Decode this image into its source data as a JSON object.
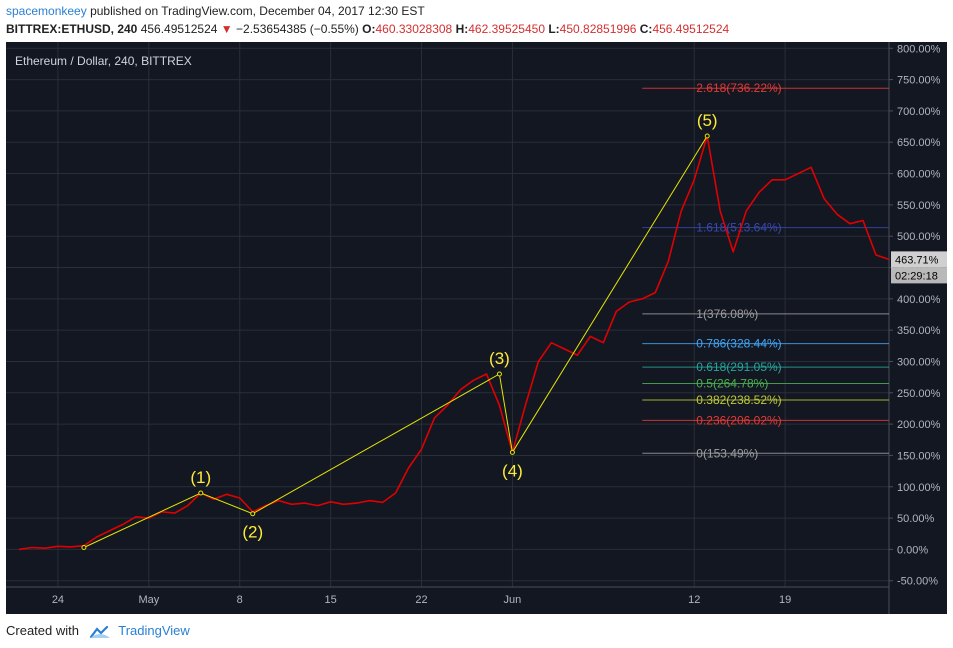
{
  "header": {
    "user": "spacemonkeey",
    "published_text": "published on TradingView.com, December 04, 2017 12:30 EST",
    "symbol": "BITTREX:ETHUSD, 240",
    "price": "456.49512524",
    "change_arrow": "▼",
    "change": "−2.53654385 (−0.55%)",
    "o_label": "O:",
    "o_value": "460.33028308",
    "h_label": "H:",
    "h_value": "462.39525450",
    "l_label": "L:",
    "l_value": "450.82851996",
    "c_label": "C:",
    "c_value": "456.49512524"
  },
  "footer": {
    "created_with": "Created with",
    "brand": "TradingView"
  },
  "colors": {
    "background": "#131722",
    "series": "#e00000",
    "wave": "#e6e600",
    "grid": "#2a2e39",
    "text": "#b2b5be"
  },
  "chart_data": {
    "type": "line",
    "title": "Ethereum / Dollar, 240, BITTREX",
    "ylabel": "",
    "y_unit": "%",
    "ylim": [
      -60,
      810
    ],
    "yticks": [
      -50,
      0,
      50,
      100,
      150,
      200,
      250,
      300,
      350,
      400,
      450,
      500,
      550,
      600,
      650,
      700,
      750,
      800
    ],
    "ytick_labels": [
      "-50.00%",
      "0.00%",
      "50.00%",
      "100.00%",
      "150.00%",
      "200.00%",
      "250.00%",
      "300.00%",
      "350.00%",
      "400.00%",
      "450.00%",
      "500.00%",
      "550.00%",
      "600.00%",
      "650.00%",
      "700.00%",
      "750.00%",
      "800.00%"
    ],
    "xlim": [
      "2017-04-20",
      "2017-06-27"
    ],
    "xticks": [
      {
        "date": "2017-04-24",
        "label": "24"
      },
      {
        "date": "2017-05-01",
        "label": "May"
      },
      {
        "date": "2017-05-08",
        "label": "8"
      },
      {
        "date": "2017-05-15",
        "label": "15"
      },
      {
        "date": "2017-05-22",
        "label": "22"
      },
      {
        "date": "2017-05-29",
        "label": "Jun"
      },
      {
        "date": "2017-06-12",
        "label": "12"
      },
      {
        "date": "2017-06-19",
        "label": "19"
      }
    ],
    "series": [
      {
        "color": "#e00000",
        "points": [
          [
            "2017-04-21",
            0
          ],
          [
            "2017-04-22",
            3
          ],
          [
            "2017-04-23",
            2
          ],
          [
            "2017-04-24",
            5
          ],
          [
            "2017-04-25",
            4
          ],
          [
            "2017-04-26",
            6
          ],
          [
            "2017-04-27",
            20
          ],
          [
            "2017-04-28",
            30
          ],
          [
            "2017-04-29",
            40
          ],
          [
            "2017-04-30",
            52
          ],
          [
            "2017-05-01",
            50
          ],
          [
            "2017-05-02",
            60
          ],
          [
            "2017-05-03",
            58
          ],
          [
            "2017-05-04",
            70
          ],
          [
            "2017-05-05",
            90
          ],
          [
            "2017-05-06",
            80
          ],
          [
            "2017-05-07",
            88
          ],
          [
            "2017-05-08",
            82
          ],
          [
            "2017-05-09",
            60
          ],
          [
            "2017-05-10",
            70
          ],
          [
            "2017-05-11",
            78
          ],
          [
            "2017-05-12",
            72
          ],
          [
            "2017-05-13",
            74
          ],
          [
            "2017-05-14",
            70
          ],
          [
            "2017-05-15",
            76
          ],
          [
            "2017-05-16",
            72
          ],
          [
            "2017-05-17",
            74
          ],
          [
            "2017-05-18",
            78
          ],
          [
            "2017-05-19",
            75
          ],
          [
            "2017-05-20",
            90
          ],
          [
            "2017-05-21",
            130
          ],
          [
            "2017-05-22",
            160
          ],
          [
            "2017-05-23",
            210
          ],
          [
            "2017-05-24",
            230
          ],
          [
            "2017-05-25",
            255
          ],
          [
            "2017-05-26",
            270
          ],
          [
            "2017-05-27",
            280
          ],
          [
            "2017-05-28",
            230
          ],
          [
            "2017-05-29",
            155
          ],
          [
            "2017-05-30",
            230
          ],
          [
            "2017-05-31",
            300
          ],
          [
            "2017-06-01",
            330
          ],
          [
            "2017-06-02",
            320
          ],
          [
            "2017-06-03",
            310
          ],
          [
            "2017-06-04",
            340
          ],
          [
            "2017-06-05",
            330
          ],
          [
            "2017-06-06",
            380
          ],
          [
            "2017-06-07",
            395
          ],
          [
            "2017-06-08",
            400
          ],
          [
            "2017-06-09",
            410
          ],
          [
            "2017-06-10",
            460
          ],
          [
            "2017-06-11",
            540
          ],
          [
            "2017-06-12",
            590
          ],
          [
            "2017-06-13",
            660
          ],
          [
            "2017-06-14",
            540
          ],
          [
            "2017-06-15",
            475
          ],
          [
            "2017-06-16",
            540
          ],
          [
            "2017-06-17",
            570
          ],
          [
            "2017-06-18",
            590
          ],
          [
            "2017-06-19",
            590
          ],
          [
            "2017-06-20",
            600
          ],
          [
            "2017-06-21",
            610
          ],
          [
            "2017-06-22",
            560
          ],
          [
            "2017-06-23",
            535
          ],
          [
            "2017-06-24",
            520
          ],
          [
            "2017-06-25",
            525
          ],
          [
            "2017-06-26",
            470
          ],
          [
            "2017-06-27",
            463
          ]
        ]
      }
    ],
    "wave_labels": [
      {
        "label": "(1)",
        "date": "2017-05-05",
        "value": 90
      },
      {
        "label": "(2)",
        "date": "2017-05-09",
        "value": 57
      },
      {
        "label": "(3)",
        "date": "2017-05-28",
        "value": 280
      },
      {
        "label": "(4)",
        "date": "2017-05-29",
        "value": 155
      },
      {
        "label": "(5)",
        "date": "2017-06-13",
        "value": 660
      }
    ],
    "wave_start": {
      "date": "2017-04-26",
      "value": 3
    },
    "fib_levels": [
      {
        "label": "2.618(736.22%)",
        "value": 736.22,
        "color": "#e53935"
      },
      {
        "label": "1.618(513.64%)",
        "value": 513.64,
        "color": "#3949ab"
      },
      {
        "label": "1(376.08%)",
        "value": 376.08,
        "color": "#9e9e9e"
      },
      {
        "label": "0.786(328.44%)",
        "value": 328.44,
        "color": "#42a5f5"
      },
      {
        "label": "0.618(291.05%)",
        "value": 291.05,
        "color": "#26a69a"
      },
      {
        "label": "0.5(264.78%)",
        "value": 264.78,
        "color": "#4caf50"
      },
      {
        "label": "0.382(238.52%)",
        "value": 238.52,
        "color": "#c0ca33"
      },
      {
        "label": "0.236(206.02%)",
        "value": 206.02,
        "color": "#e53935"
      },
      {
        "label": "0(153.49%)",
        "value": 153.49,
        "color": "#9e9e9e"
      }
    ],
    "last_value_label": "463.71%",
    "countdown_label": "02:29:18"
  }
}
